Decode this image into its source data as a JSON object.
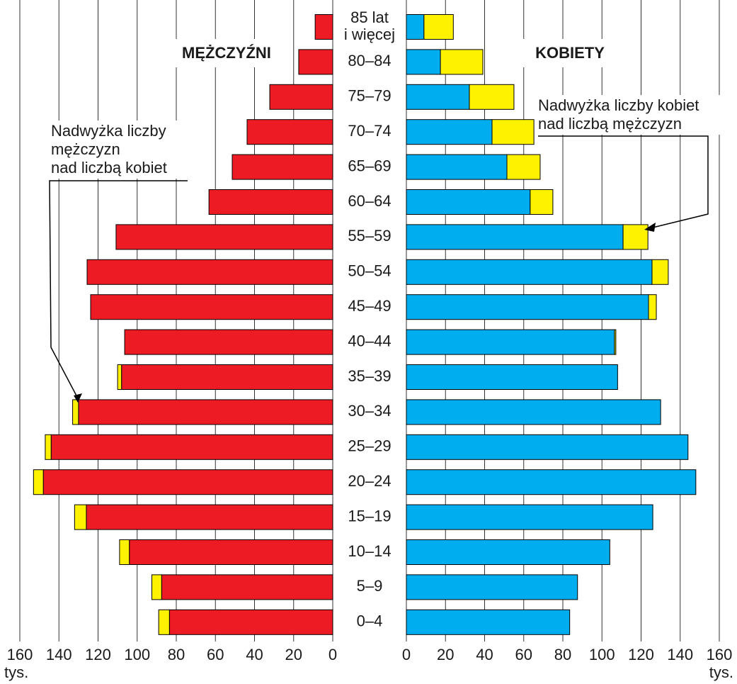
{
  "chart_data": {
    "type": "pyramid",
    "categories": [
      "85 lat\ni więcej",
      "80–84",
      "75–79",
      "70–74",
      "65–69",
      "60–64",
      "55–59",
      "50–54",
      "45–49",
      "40–44",
      "35–39",
      "30–34",
      "25–29",
      "20–24",
      "15–19",
      "10–14",
      "5–9",
      "0–4"
    ],
    "panels": [
      {
        "title": "MĘŻCZYŹNI",
        "xlim": [
          160,
          0
        ],
        "xticks": [
          0,
          20,
          40,
          60,
          80,
          100,
          120,
          140,
          160
        ],
        "unit": "tys.",
        "annotation": [
          "Nadwyżka liczby",
          "mężczyzn",
          "nad liczbą kobiet"
        ],
        "series": [
          {
            "color": "#ed1c24",
            "values": [
              9,
              17.4,
              32.2,
              43.8,
              51.4,
              63.3,
              110.8,
              125.6,
              123.8,
              106.4,
              108,
              130,
              144,
              148,
              126,
              104,
              87.5,
              83.5
            ]
          },
          {
            "color": "#fff200",
            "values": [
              0,
              0,
              0,
              0,
              0,
              0,
              0,
              0,
              0,
              0,
              2,
              3,
              3,
              5,
              6,
              5,
              5,
              5.5
            ]
          }
        ]
      },
      {
        "title": "KOBIETY",
        "xlim": [
          0,
          160
        ],
        "xticks": [
          0,
          20,
          40,
          60,
          80,
          100,
          120,
          140,
          160
        ],
        "unit": "tys.",
        "annotation": [
          "Nadwyżka liczby kobiet",
          "nad liczbą mężczyzn"
        ],
        "series": [
          {
            "color": "#00aeef",
            "values": [
              9,
              17.4,
              32.2,
              43.8,
              51.4,
              63.3,
              110.8,
              125.6,
              123.8,
              106.4,
              108,
              130,
              144,
              148,
              126,
              104,
              87.5,
              83.5
            ]
          },
          {
            "color": "#fff200",
            "values": [
              15,
              21.7,
              22.8,
              21.4,
              17,
              11.6,
              12.7,
              8.3,
              4,
              0.7,
              0,
              0,
              0,
              0,
              0,
              0,
              0,
              0
            ]
          }
        ]
      }
    ]
  }
}
